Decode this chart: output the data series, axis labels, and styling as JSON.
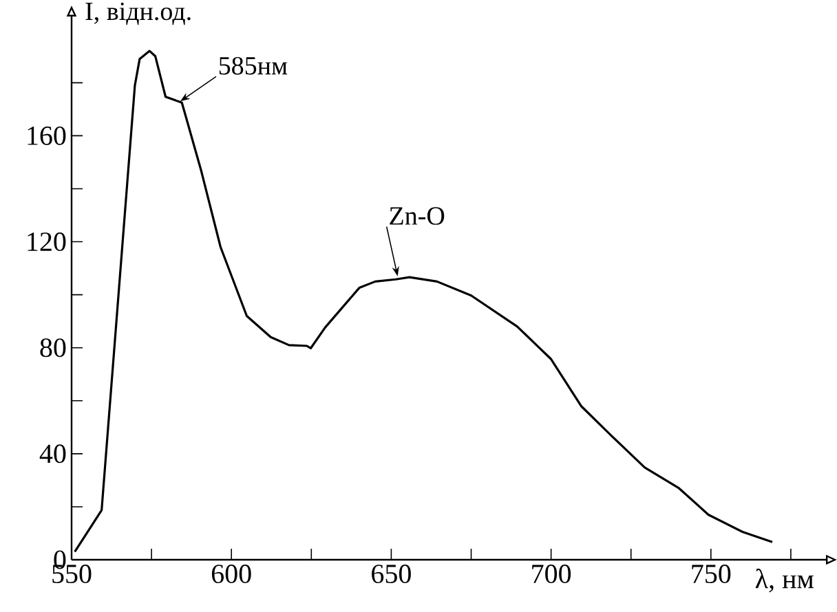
{
  "chart_data": {
    "type": "line",
    "xlabel": "λ, нм",
    "ylabel": "I, відн.од.",
    "xlim": [
      550,
      786
    ],
    "ylim": [
      0,
      205
    ],
    "xticks": [
      550,
      {
        "value": 575,
        "label": null
      },
      600,
      {
        "value": 625,
        "label": null
      },
      650,
      {
        "value": 675,
        "label": null
      },
      700,
      {
        "value": 725,
        "label": null
      },
      750,
      {
        "value": 775,
        "label": null
      }
    ],
    "yticks": [
      0,
      {
        "value": 20,
        "label": null
      },
      40,
      {
        "value": 60,
        "label": null
      },
      80,
      {
        "value": 100,
        "label": null
      },
      120,
      {
        "value": 140,
        "label": null
      },
      160,
      {
        "value": 180,
        "label": null
      }
    ],
    "grid": false,
    "marker": "none",
    "line_style": "solid",
    "series": [
      {
        "color": "#000000",
        "x": [
          551,
          559.4,
          569.8,
          571.3,
          574.4,
          576.2,
          579.4,
          584.5,
          590.5,
          596.6,
          604.8,
          612.3,
          618,
          623.6,
          624.8,
          629.3,
          640,
          645,
          651.4,
          655.7,
          664.3,
          675,
          689.4,
          700,
          709.4,
          718.7,
          729.3,
          740,
          749.2,
          759.9,
          769.2
        ],
        "values": [
          3,
          18.7,
          179,
          189,
          192,
          190,
          174.7,
          172.5,
          147,
          118,
          92,
          84,
          81,
          80.7,
          79.8,
          87.6,
          102.6,
          105,
          105.8,
          106.6,
          105,
          99.7,
          88,
          75.7,
          58,
          47,
          34.8,
          27,
          17,
          10.5,
          6.7
        ]
      }
    ],
    "annotations": [
      {
        "text": "585нм",
        "x": 584,
        "y": 173
      },
      {
        "text": "Zn-O",
        "x": 652,
        "y": 107
      }
    ]
  }
}
